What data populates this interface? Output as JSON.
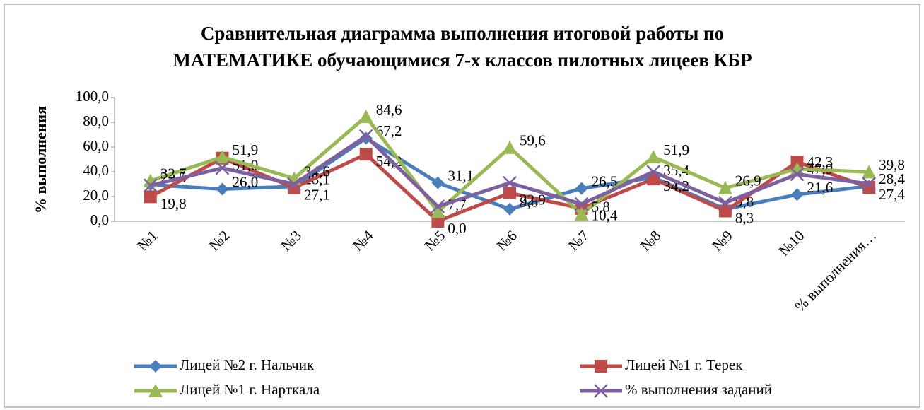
{
  "chart_data": {
    "type": "line",
    "title": "Сравнительная диаграмма выполнения итоговой работы по",
    "subtitle": "МАТЕМАТИКЕ обучающимися 7-х классов пилотных лицеев КБР",
    "y_label": "% выполнения",
    "categories": [
      "№1",
      "№2",
      "№3",
      "№4",
      "№5",
      "№6",
      "№7",
      "№8",
      "№9",
      "№10",
      "% выполнения…"
    ],
    "ylim": [
      0,
      100
    ],
    "yticks": [
      {
        "value": 0,
        "label": "0,0"
      },
      {
        "value": 20,
        "label": "20,0"
      },
      {
        "value": 40,
        "label": "40,0"
      },
      {
        "value": 60,
        "label": "60,0"
      },
      {
        "value": 80,
        "label": "80,0"
      },
      {
        "value": 100,
        "label": "100,0"
      }
    ],
    "legend": "bottom",
    "series": [
      {
        "name": "Лицей №2   г. Нальчик",
        "color": "#4a7ebb",
        "marker": "diamond",
        "values": [
          29.5,
          26.0,
          28.1,
          67.2,
          31.1,
          9.8,
          26.5,
          35.4,
          9.8,
          21.6,
          28.4
        ],
        "value_labels": [
          "29,5",
          "26,0",
          "28,1",
          "67,2",
          "31,1",
          "9,8",
          "26,5",
          "35,4",
          "9,8",
          "21,6",
          "28,4"
        ]
      },
      {
        "name": "Лицей №1    г. Терек",
        "color": "#be4b48",
        "marker": "square",
        "values": [
          19.8,
          51.0,
          27.1,
          54.2,
          0.0,
          22.9,
          10.4,
          34.2,
          8.3,
          47.9,
          27.4
        ],
        "value_labels": [
          "19,8",
          "51,0",
          "27,1",
          "54,2",
          "0,0",
          "22,9",
          "10,4",
          "34,2",
          "8,3",
          "47,9",
          "27,4"
        ]
      },
      {
        "name": "Лицей №1   г. Нарткала",
        "color": "#98b954",
        "marker": "triangle",
        "values": [
          32.7,
          51.9,
          34.6,
          84.6,
          7.7,
          59.6,
          5.8,
          51.9,
          26.9,
          42.3,
          39.8
        ],
        "value_labels": [
          "32,7",
          "51,9",
          "34,6",
          "84,6",
          "7,7",
          "59,6",
          "5,8",
          "51,9",
          "26,9",
          "42,3",
          "39,8"
        ]
      },
      {
        "name": "% выполнения заданий",
        "color": "#7d60a0",
        "marker": "x",
        "values": [
          29.0,
          43.0,
          30.0,
          68.8,
          12.0,
          31.0,
          14.0,
          40.0,
          15.0,
          38.0,
          30.2
        ]
      }
    ]
  }
}
